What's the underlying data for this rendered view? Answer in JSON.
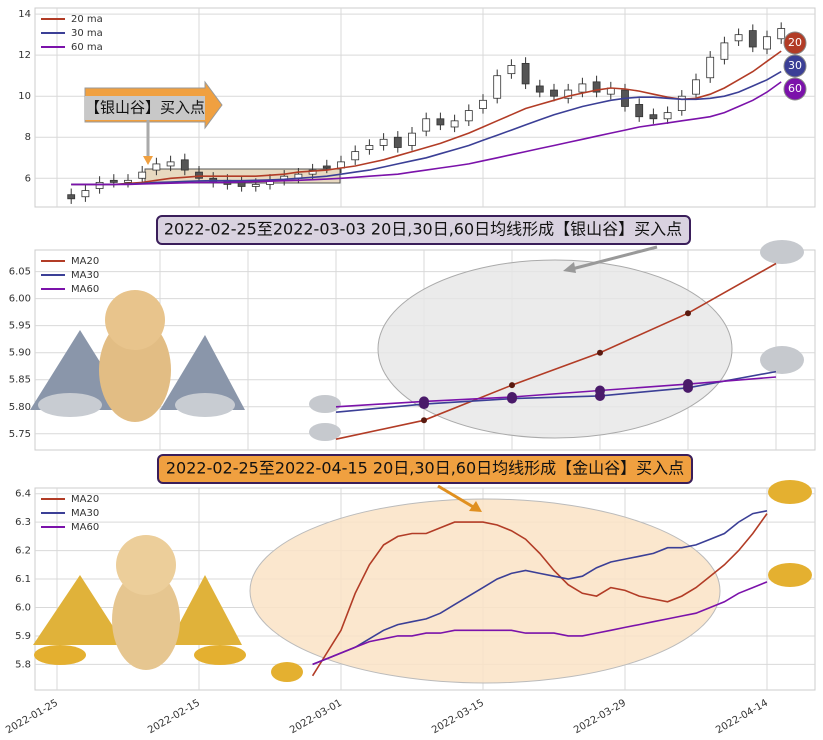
{
  "chart_data": [
    {
      "type": "candlestick",
      "annotation": "【银山谷】买入点",
      "ylim": [
        4.6,
        14.3
      ],
      "yticks": [
        6,
        8,
        10,
        12,
        14
      ],
      "up_color": "#ffffff",
      "down_color": "#555555",
      "open": [
        null,
        5.2,
        5.1,
        5.5,
        5.9,
        5.8,
        6.0,
        6.4,
        6.6,
        6.9,
        6.3,
        6.0,
        5.9,
        5.8,
        5.6,
        5.7,
        5.9,
        6.0,
        6.2,
        6.6,
        6.5,
        6.9,
        7.4,
        7.6,
        8.0,
        7.6,
        8.3,
        8.9,
        8.5,
        8.8,
        9.4,
        9.9,
        11.1,
        11.6,
        10.5,
        10.3,
        9.9,
        10.2,
        10.7,
        10.1,
        10.3,
        9.6,
        9.1,
        8.9,
        9.3,
        10.1,
        10.9,
        11.8,
        12.7,
        13.2,
        12.3,
        12.8
      ],
      "high": [
        null,
        5.5,
        5.7,
        6.1,
        6.2,
        6.2,
        6.6,
        7.0,
        7.1,
        7.2,
        6.6,
        6.3,
        6.2,
        6.1,
        6.0,
        6.2,
        6.4,
        6.5,
        6.7,
        6.9,
        7.1,
        7.6,
        7.9,
        8.2,
        8.3,
        8.5,
        9.2,
        9.2,
        9.1,
        9.6,
        10.1,
        11.3,
        11.8,
        11.9,
        10.8,
        10.6,
        10.6,
        10.9,
        11.0,
        10.7,
        10.6,
        9.9,
        9.4,
        9.5,
        10.3,
        11.1,
        12.2,
        12.9,
        13.3,
        13.5,
        13.2,
        13.6
      ],
      "low": [
        null,
        4.75,
        4.85,
        5.25,
        5.55,
        5.55,
        5.75,
        6.15,
        6.35,
        6.15,
        5.75,
        5.55,
        5.45,
        5.35,
        5.35,
        5.45,
        5.65,
        5.75,
        5.95,
        6.25,
        6.25,
        6.65,
        7.15,
        7.35,
        7.25,
        7.35,
        8.05,
        8.35,
        8.25,
        8.55,
        9.15,
        9.65,
        10.85,
        10.35,
        9.95,
        9.75,
        9.65,
        9.95,
        9.95,
        9.85,
        9.25,
        8.75,
        8.65,
        8.65,
        9.05,
        9.85,
        10.65,
        11.55,
        12.45,
        12.15,
        12.05,
        12.55
      ],
      "close": [
        null,
        5.0,
        5.4,
        5.8,
        5.8,
        5.9,
        6.3,
        6.7,
        6.8,
        6.4,
        6.0,
        5.8,
        5.7,
        5.6,
        5.7,
        5.9,
        6.1,
        6.2,
        6.4,
        6.5,
        6.8,
        7.3,
        7.6,
        7.9,
        7.5,
        8.2,
        8.9,
        8.6,
        8.8,
        9.3,
        9.8,
        11.0,
        11.5,
        10.6,
        10.2,
        10.0,
        10.3,
        10.6,
        10.2,
        10.4,
        9.5,
        9.0,
        8.9,
        9.2,
        10.0,
        10.8,
        11.9,
        12.6,
        13.0,
        12.4,
        12.9,
        13.3
      ],
      "series": [
        {
          "name": "20 ma",
          "label": "20",
          "color": "#b23c26",
          "values": [
            null,
            5.7,
            5.7,
            5.7,
            5.7,
            5.75,
            5.8,
            5.9,
            6.0,
            6.05,
            6.1,
            6.1,
            6.1,
            6.1,
            6.1,
            6.15,
            6.2,
            6.3,
            6.35,
            6.4,
            6.5,
            6.6,
            6.75,
            6.9,
            7.1,
            7.3,
            7.5,
            7.7,
            7.95,
            8.2,
            8.5,
            8.8,
            9.1,
            9.4,
            9.6,
            9.8,
            10.0,
            10.15,
            10.3,
            10.4,
            10.35,
            10.25,
            10.1,
            9.95,
            9.85,
            9.9,
            10.1,
            10.4,
            10.8,
            11.2,
            11.7,
            12.2
          ]
        },
        {
          "name": "30 ma",
          "label": "30",
          "color": "#3b3f96",
          "values": [
            null,
            5.7,
            5.7,
            5.7,
            5.7,
            5.72,
            5.75,
            5.8,
            5.82,
            5.85,
            5.87,
            5.88,
            5.88,
            5.88,
            5.9,
            5.92,
            5.95,
            6.0,
            6.05,
            6.1,
            6.2,
            6.3,
            6.4,
            6.55,
            6.7,
            6.85,
            7.0,
            7.2,
            7.4,
            7.6,
            7.85,
            8.1,
            8.35,
            8.6,
            8.85,
            9.1,
            9.3,
            9.5,
            9.65,
            9.8,
            9.9,
            9.95,
            9.95,
            9.9,
            9.85,
            9.85,
            9.9,
            10.0,
            10.2,
            10.5,
            10.8,
            11.2
          ]
        },
        {
          "name": "60 ma",
          "label": "60",
          "color": "#7b12aa",
          "values": [
            null,
            5.7,
            5.7,
            5.7,
            5.7,
            5.7,
            5.72,
            5.74,
            5.76,
            5.78,
            5.8,
            5.8,
            5.8,
            5.82,
            5.84,
            5.86,
            5.88,
            5.9,
            5.93,
            5.96,
            6.0,
            6.05,
            6.1,
            6.15,
            6.2,
            6.3,
            6.4,
            6.5,
            6.6,
            6.7,
            6.85,
            7.0,
            7.15,
            7.3,
            7.45,
            7.6,
            7.75,
            7.9,
            8.05,
            8.2,
            8.35,
            8.5,
            8.6,
            8.7,
            8.8,
            8.9,
            9.0,
            9.2,
            9.5,
            9.8,
            10.2,
            10.7
          ]
        }
      ]
    },
    {
      "type": "line",
      "title": "2022-02-25至2022-03-03 20日,30日,60日均线形成【银山谷】买入点",
      "ylim": [
        5.72,
        6.09
      ],
      "yticks": [
        5.75,
        {
          "value": 5.8,
          "label": "5.80"
        },
        5.85,
        {
          "value": 5.9,
          "label": "5.90"
        },
        5.95,
        {
          "value": 6,
          "label": "6.00"
        },
        6.05
      ],
      "series": [
        {
          "name": "MA20",
          "color": "#b23c26",
          "values": [
            5.74,
            5.775,
            5.84,
            5.9,
            5.973,
            6.065
          ]
        },
        {
          "name": "MA30",
          "color": "#3b3f96",
          "values": [
            5.79,
            5.805,
            5.815,
            5.82,
            5.835,
            5.865
          ]
        },
        {
          "name": "MA60",
          "color": "#7b12aa",
          "values": [
            5.8,
            5.81,
            5.818,
            5.83,
            5.842,
            5.855
          ]
        }
      ]
    },
    {
      "type": "line",
      "title": "2022-02-25至2022-04-15 20日,30日,60日均线形成【金山谷】买入点",
      "ylim": [
        5.71,
        6.42
      ],
      "yticks": [
        5.8,
        5.9,
        {
          "value": 6,
          "label": "6.0"
        },
        6.1,
        6.2,
        6.3,
        6.4
      ],
      "categories": [
        "2022-01-25",
        null,
        null,
        null,
        null,
        null,
        null,
        null,
        null,
        null,
        "2022-02-15",
        null,
        null,
        null,
        null,
        null,
        null,
        null,
        null,
        null,
        "2022-03-01",
        null,
        null,
        null,
        null,
        null,
        null,
        null,
        null,
        null,
        "2022-03-15",
        null,
        null,
        null,
        null,
        null,
        null,
        null,
        null,
        null,
        "2022-03-29",
        null,
        null,
        null,
        null,
        null,
        null,
        null,
        null,
        null,
        "2022-04-14",
        null
      ],
      "series": [
        {
          "name": "MA20",
          "color": "#b23c26",
          "values": [
            null,
            null,
            null,
            null,
            null,
            null,
            null,
            null,
            null,
            null,
            null,
            null,
            null,
            null,
            null,
            null,
            null,
            null,
            5.76,
            5.84,
            5.92,
            6.05,
            6.15,
            6.22,
            6.25,
            6.26,
            6.26,
            6.28,
            6.3,
            6.3,
            6.3,
            6.29,
            6.27,
            6.24,
            6.19,
            6.13,
            6.08,
            6.05,
            6.04,
            6.07,
            6.06,
            6.04,
            6.03,
            6.02,
            6.04,
            6.07,
            6.11,
            6.15,
            6.2,
            6.26,
            6.33,
            null
          ]
        },
        {
          "name": "MA30",
          "color": "#3b3f96",
          "values": [
            null,
            null,
            null,
            null,
            null,
            null,
            null,
            null,
            null,
            null,
            null,
            null,
            null,
            null,
            null,
            null,
            null,
            null,
            5.8,
            5.82,
            5.84,
            5.86,
            5.89,
            5.92,
            5.94,
            5.95,
            5.96,
            5.98,
            6.01,
            6.04,
            6.07,
            6.1,
            6.12,
            6.13,
            6.12,
            6.11,
            6.1,
            6.11,
            6.14,
            6.16,
            6.17,
            6.18,
            6.19,
            6.21,
            6.21,
            6.22,
            6.24,
            6.26,
            6.3,
            6.33,
            6.34,
            null
          ]
        },
        {
          "name": "MA60",
          "color": "#7b12aa",
          "values": [
            null,
            null,
            null,
            null,
            null,
            null,
            null,
            null,
            null,
            null,
            null,
            null,
            null,
            null,
            null,
            null,
            null,
            null,
            5.8,
            5.82,
            5.84,
            5.86,
            5.88,
            5.89,
            5.9,
            5.9,
            5.91,
            5.91,
            5.92,
            5.92,
            5.92,
            5.92,
            5.92,
            5.91,
            5.91,
            5.91,
            5.9,
            5.9,
            5.91,
            5.92,
            5.93,
            5.94,
            5.95,
            5.96,
            5.97,
            5.98,
            6.0,
            6.02,
            6.05,
            6.07,
            6.09,
            null
          ]
        }
      ]
    }
  ]
}
